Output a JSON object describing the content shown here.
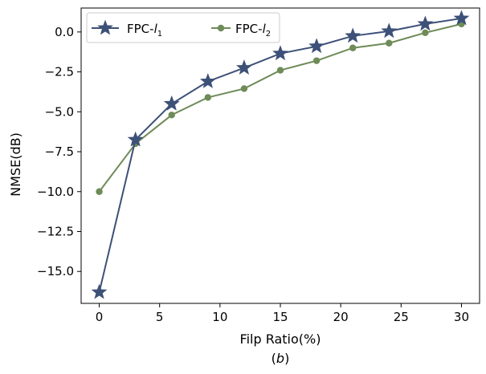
{
  "chart_data": {
    "type": "line",
    "xlabel": "Filp Ratio(%)",
    "ylabel": "NMSE(dB)",
    "caption": "(b)",
    "x": [
      0,
      3,
      6,
      9,
      12,
      15,
      18,
      21,
      24,
      27,
      30
    ],
    "xlim": [
      -1.5,
      31.5
    ],
    "ylim": [
      -17.0,
      1.5
    ],
    "xticks": [
      "0",
      "5",
      "10",
      "15",
      "20",
      "25",
      "30"
    ],
    "yticks": [
      "0.0",
      "−2.5",
      "−5.0",
      "−7.5",
      "−10.0",
      "−12.5",
      "−15.0"
    ],
    "grid": false,
    "legend_position": "top-left",
    "series": [
      {
        "name": "FPC-l1",
        "legend_text": "FPC-",
        "legend_italic": "l",
        "legend_sub": "1",
        "marker": "star",
        "color": "#3d5078",
        "values": [
          -16.3,
          -6.75,
          -4.5,
          -3.1,
          -2.25,
          -1.35,
          -0.9,
          -0.25,
          0.05,
          0.5,
          0.85
        ]
      },
      {
        "name": "FPC-l2",
        "legend_text": "FPC-",
        "legend_italic": "l",
        "legend_sub": "2",
        "marker": "circle",
        "color": "#6e8b58",
        "values": [
          -10.0,
          -7.0,
          -5.2,
          -4.1,
          -3.55,
          -2.4,
          -1.8,
          -1.0,
          -0.7,
          -0.05,
          0.5
        ]
      }
    ]
  }
}
